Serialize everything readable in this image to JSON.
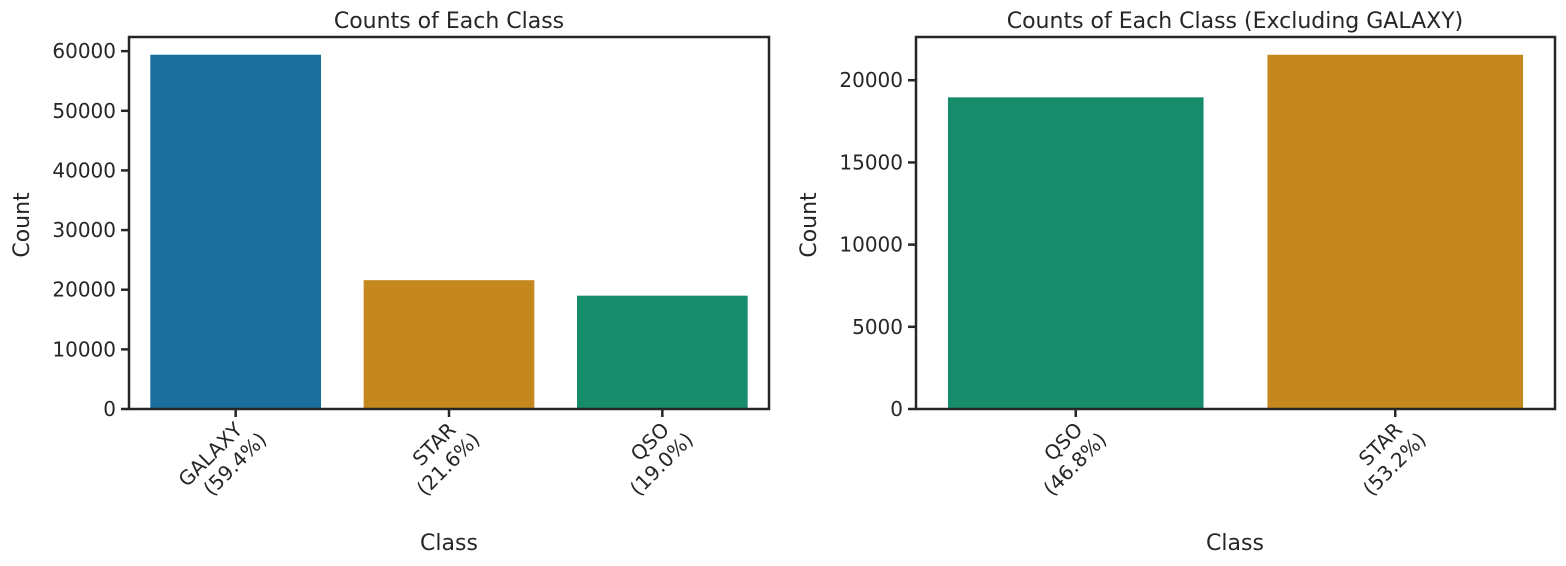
{
  "chart_data": [
    {
      "type": "bar",
      "title": "Counts of Each Class",
      "xlabel": "Class",
      "ylabel": "Count",
      "categories": [
        "GALAXY",
        "STAR",
        "QSO"
      ],
      "category_pct": [
        "(59.4%)",
        "(21.6%)",
        "(19.0%)"
      ],
      "values": [
        59400,
        21600,
        19000
      ],
      "colors": [
        "#1a6e9c",
        "#c4881f",
        "#178c6a"
      ],
      "yticks": [
        0,
        10000,
        20000,
        30000,
        40000,
        50000,
        60000
      ],
      "ytick_labels": [
        "0",
        "10000",
        "20000",
        "30000",
        "40000",
        "50000",
        "60000"
      ],
      "ylim": [
        0,
        62370
      ],
      "grid": false
    },
    {
      "type": "bar",
      "title": "Counts of Each Class (Excluding GALAXY)",
      "xlabel": "Class",
      "ylabel": "Count",
      "categories": [
        "QSO",
        "STAR"
      ],
      "category_pct": [
        "(46.8%)",
        "(53.2%)"
      ],
      "values": [
        18960,
        21550
      ],
      "colors": [
        "#178c6a",
        "#c4881f"
      ],
      "yticks": [
        0,
        5000,
        10000,
        15000,
        20000
      ],
      "ytick_labels": [
        "0",
        "5000",
        "10000",
        "15000",
        "20000"
      ],
      "ylim": [
        0,
        22630
      ],
      "grid": false
    }
  ]
}
